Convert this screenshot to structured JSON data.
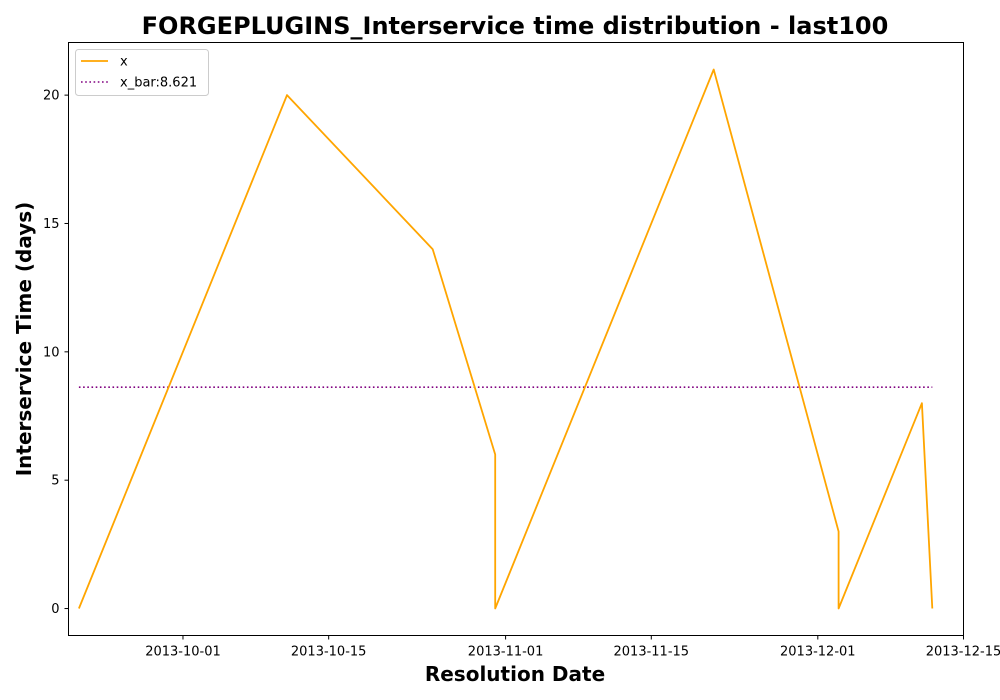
{
  "chart_data": {
    "type": "line",
    "title": "FORGEPLUGINS_Interservice time distribution - last100",
    "xlabel": "Resolution Date",
    "ylabel": "Interservice Time (days)",
    "x_ticks": [
      "2013-10-01",
      "2013-10-15",
      "2013-11-01",
      "2013-11-15",
      "2013-12-01",
      "2013-12-15"
    ],
    "y_ticks": [
      0,
      5,
      10,
      15,
      20
    ],
    "xlim": [
      "2013-09-20",
      "2013-12-15"
    ],
    "ylim": [
      -1.05,
      22.05
    ],
    "grid": false,
    "legend_position": "top-left",
    "series": [
      {
        "name": "x",
        "color": "#ffa500",
        "style": "solid",
        "x": [
          "2013-09-21",
          "2013-10-11",
          "2013-10-25",
          "2013-10-31",
          "2013-10-31",
          "2013-11-21",
          "2013-12-03",
          "2013-12-03",
          "2013-12-11",
          "2013-12-12"
        ],
        "y": [
          0,
          20,
          14,
          6,
          0,
          21,
          3,
          0,
          8,
          0
        ]
      },
      {
        "name": "x_bar:8.621",
        "color": "#800080",
        "style": "dotted",
        "x": [
          "2013-09-21",
          "2013-12-12"
        ],
        "y": [
          8.621,
          8.621
        ]
      }
    ]
  }
}
